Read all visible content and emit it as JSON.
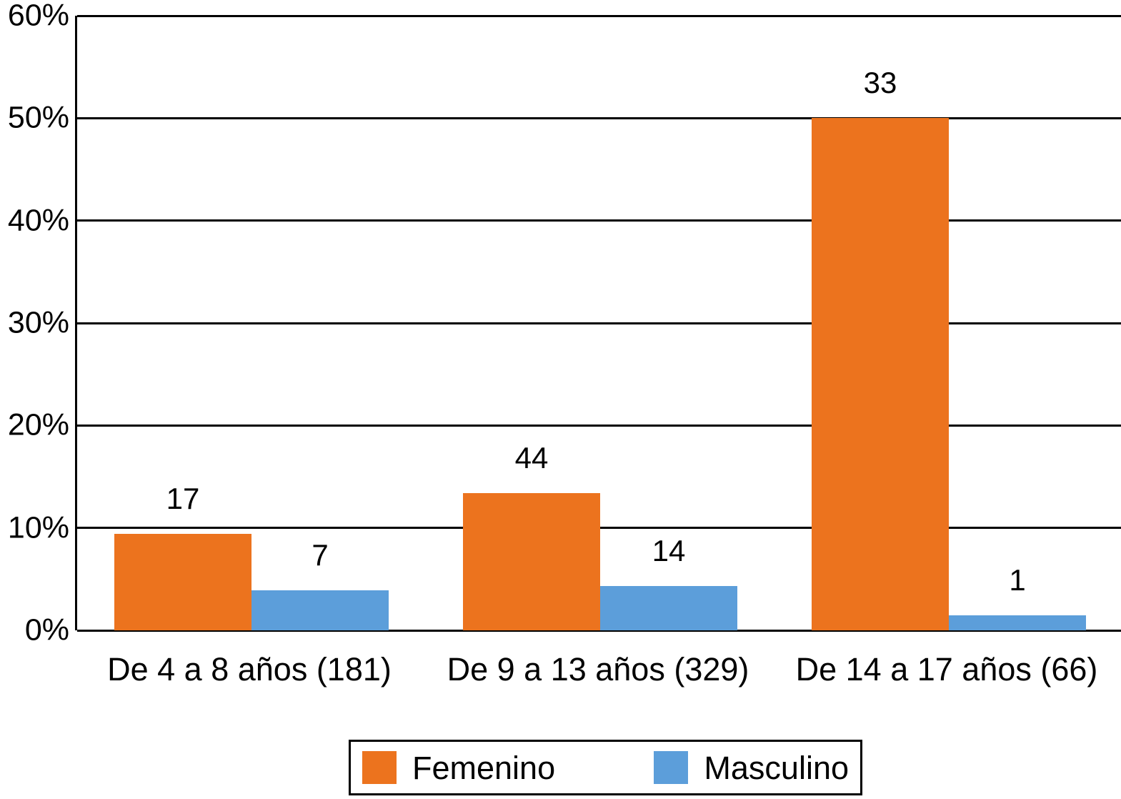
{
  "chart_data": {
    "type": "bar",
    "title": "",
    "xlabel": "",
    "ylabel": "",
    "ylim": [
      0,
      60
    ],
    "grid": true,
    "legend_position": "bottom",
    "categories": [
      "De 4 a 8 años (181)",
      "De 9 a 13 años (329)",
      "De 14 a 17 años (66)"
    ],
    "group_totals": [
      181,
      329,
      66
    ],
    "series": [
      {
        "name": "Femenino",
        "color": "#EC731E",
        "values": [
          17,
          44,
          33
        ],
        "pct": [
          9.4,
          13.4,
          50.0
        ]
      },
      {
        "name": "Masculino",
        "color": "#5C9EDA",
        "values": [
          7,
          14,
          1
        ],
        "pct": [
          3.9,
          4.3,
          1.5
        ]
      }
    ],
    "yticks": [
      {
        "v": 0,
        "label": "0%"
      },
      {
        "v": 10,
        "label": "10%"
      },
      {
        "v": 20,
        "label": "20%"
      },
      {
        "v": 30,
        "label": "30%"
      },
      {
        "v": 40,
        "label": "40%"
      },
      {
        "v": 50,
        "label": "50%"
      },
      {
        "v": 60,
        "label": "60%"
      }
    ]
  }
}
